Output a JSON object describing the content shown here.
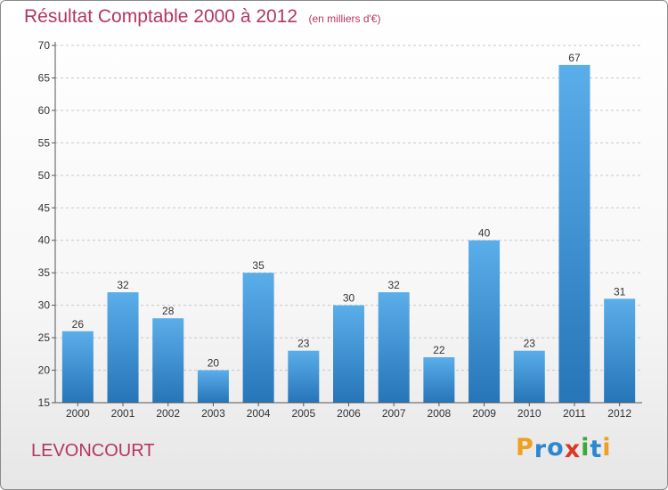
{
  "chart_data": {
    "type": "bar",
    "title": "Résultat Comptable 2000 à 2012",
    "subtitle": "(en milliers d'€)",
    "xlabel": "",
    "ylabel": "",
    "categories": [
      "2000",
      "2001",
      "2002",
      "2003",
      "2004",
      "2005",
      "2006",
      "2007",
      "2008",
      "2009",
      "2010",
      "2011",
      "2012"
    ],
    "values": [
      26,
      32,
      28,
      20,
      35,
      23,
      30,
      32,
      22,
      40,
      23,
      67,
      31
    ],
    "ylim": [
      15,
      70
    ],
    "yticks": [
      15,
      20,
      25,
      30,
      35,
      40,
      45,
      50,
      55,
      60,
      65,
      70
    ],
    "grid": true,
    "bar_color": "#3f93d6",
    "grid_color": "#c8c8c8"
  },
  "footer": {
    "location": "LEVONCOURT",
    "logo_letters": [
      {
        "char": "P",
        "color": "#f0a020"
      },
      {
        "char": "r",
        "color": "#2a87d0"
      },
      {
        "char": "o",
        "color": "#2a87d0"
      },
      {
        "char": "x",
        "color": "#d83a28"
      },
      {
        "char": "i",
        "color": "#3aa83a"
      },
      {
        "char": "t",
        "color": "#2a87d0"
      },
      {
        "char": "i",
        "color": "#f0a020"
      }
    ]
  }
}
